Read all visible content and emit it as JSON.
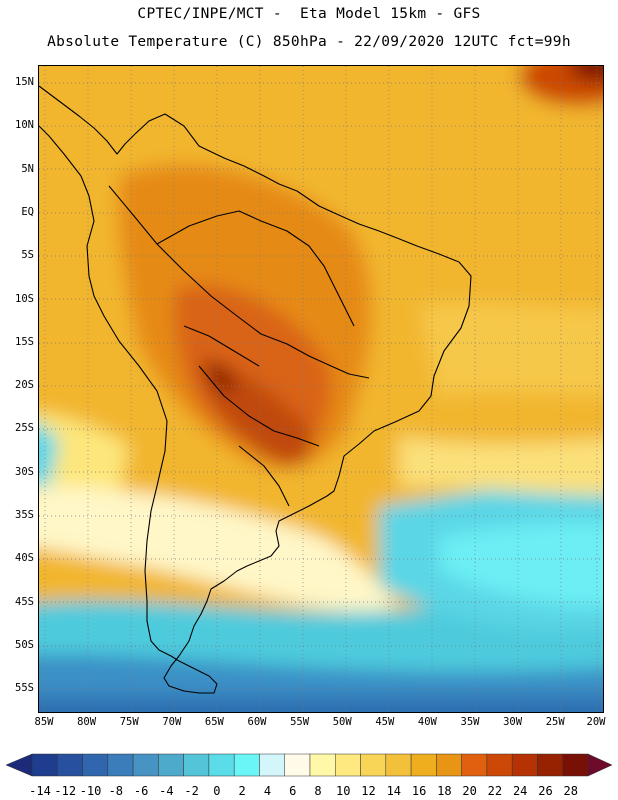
{
  "header": {
    "line1": "CPTEC/INPE/MCT -  Eta Model 15km - GFS",
    "line2": "Absolute Temperature (C) 850hPa - 22/09/2020 12UTC fct=99h"
  },
  "map": {
    "lat_labels": [
      "15N",
      "10N",
      "5N",
      "EQ",
      "5S",
      "10S",
      "15S",
      "20S",
      "25S",
      "30S",
      "35S",
      "40S",
      "45S",
      "50S",
      "55S"
    ],
    "lon_labels": [
      "85W",
      "80W",
      "75W",
      "70W",
      "65W",
      "60W",
      "55W",
      "50W",
      "45W",
      "40W",
      "35W",
      "30W",
      "25W",
      "20W"
    ],
    "gridlines": "dotted",
    "region": "South America"
  },
  "colorbar": {
    "labels": [
      "-14",
      "-12",
      "-10",
      "-8",
      "-6",
      "-4",
      "-2",
      "0",
      "2",
      "4",
      "6",
      "8",
      "10",
      "12",
      "14",
      "16",
      "18",
      "20",
      "22",
      "24",
      "26",
      "28"
    ],
    "under_color": "#1c2a7a",
    "over_color": "#6e0a2a",
    "colors": [
      "#1f3d8f",
      "#27509f",
      "#2f66ad",
      "#3a7dba",
      "#4693c4",
      "#4eaacb",
      "#54c4d8",
      "#5adde8",
      "#6af6f6",
      "#d3f6fb",
      "#fffbe8",
      "#fff8a8",
      "#fde980",
      "#f8d556",
      "#f2c03a",
      "#eeae1e",
      "#e89414",
      "#e06010",
      "#cc4806",
      "#b43204",
      "#962202",
      "#781006"
    ]
  }
}
